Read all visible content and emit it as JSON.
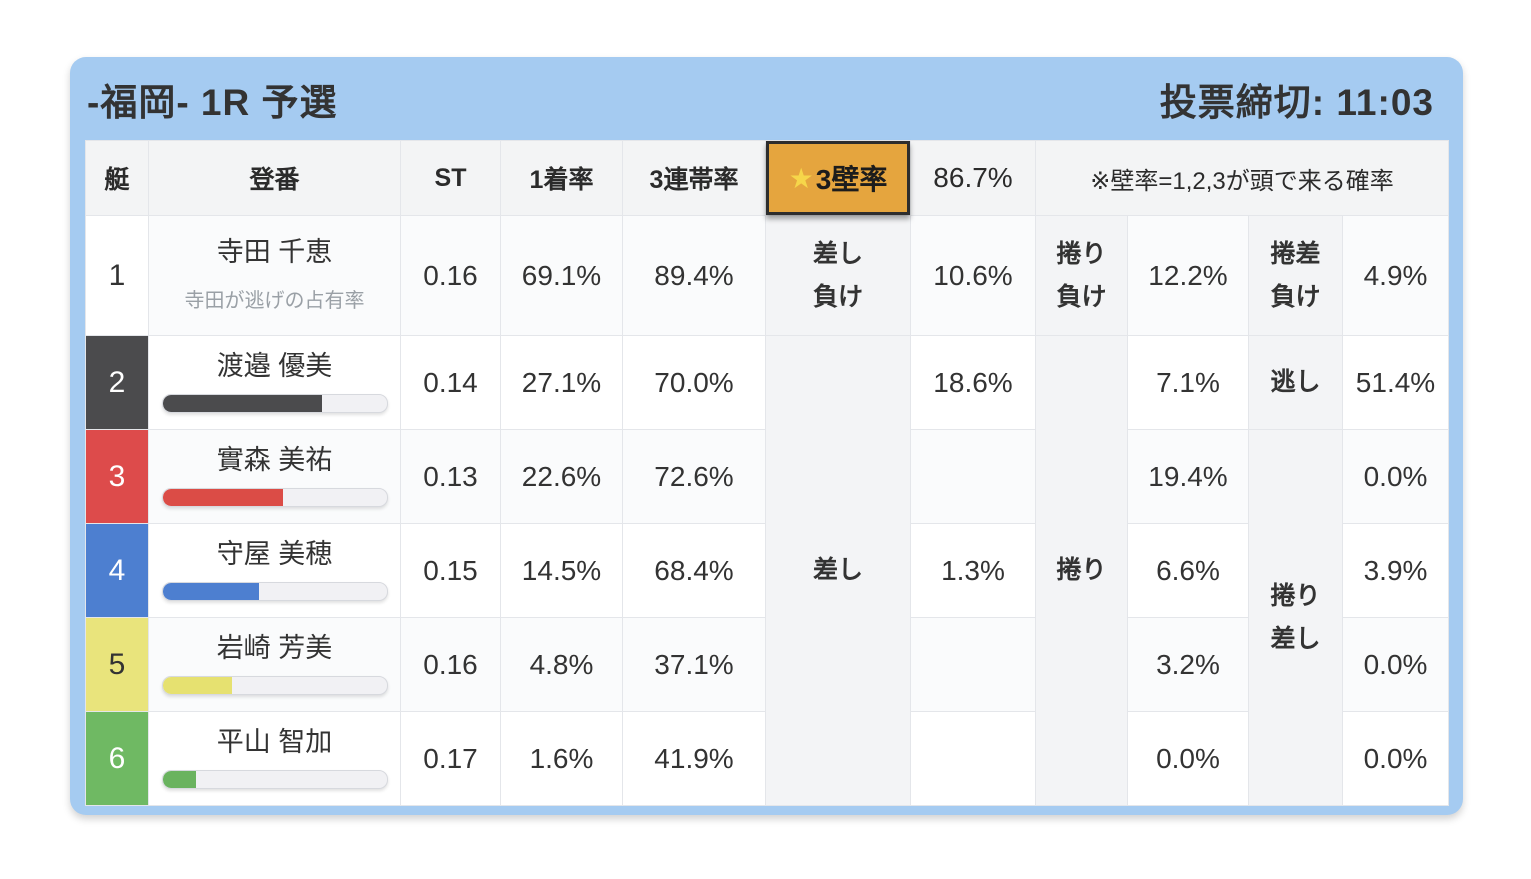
{
  "header": {
    "title": "-福岡- 1R 予選",
    "deadline": "投票締切: 11:03"
  },
  "columns": {
    "boat": "艇",
    "racer": "登番",
    "st": "ST",
    "win_rate": "1着率",
    "top3_rate": "3連帯率",
    "wall_star_icon": "★",
    "wall_label": "3壁率",
    "wall_value": "86.7%",
    "note": "※壁率=1,2,3が頭で来る確率"
  },
  "merged_labels": {
    "sashi": "差し",
    "makuri": "捲り",
    "makuri_sashi": "捲り\n差し",
    "nigashi": "逃し"
  },
  "rows": [
    {
      "boat": "1",
      "name": "寺田 千恵",
      "subtext": "寺田が逃げの占有率",
      "st": "0.16",
      "win": "69.1%",
      "top3": "89.4%",
      "label1": "差し\n負け",
      "val1": "10.6%",
      "label2": "捲り\n負け",
      "val2": "12.2%",
      "label3": "捲差\n負け",
      "val3": "4.9%",
      "boat_bg": "#ffffff",
      "boat_fg": "#333333"
    },
    {
      "boat": "2",
      "name": "渡邉 優美",
      "st": "0.14",
      "win": "27.1%",
      "top3": "70.0%",
      "val1": "18.6%",
      "val2": "7.1%",
      "val3": "51.4%",
      "boat_bg": "#4b4b4d",
      "boat_fg": "#ffffff",
      "bar": {
        "pct": 71,
        "color": "#4b4b4d"
      }
    },
    {
      "boat": "3",
      "name": "實森 美祐",
      "st": "0.13",
      "win": "22.6%",
      "top3": "72.6%",
      "val1": "",
      "val2": "19.4%",
      "val3": "0.0%",
      "boat_bg": "#dd4b4b",
      "boat_fg": "#ffffff",
      "bar": {
        "pct": 54,
        "color": "#db4c46"
      }
    },
    {
      "boat": "4",
      "name": "守屋 美穂",
      "st": "0.15",
      "win": "14.5%",
      "top3": "68.4%",
      "val1": "1.3%",
      "val2": "6.6%",
      "val3": "3.9%",
      "boat_bg": "#4d7fd0",
      "boat_fg": "#ffffff",
      "bar": {
        "pct": 43,
        "color": "#4d7fd0"
      }
    },
    {
      "boat": "5",
      "name": "岩崎 芳美",
      "st": "0.16",
      "win": "4.8%",
      "top3": "37.1%",
      "val1": "",
      "val2": "3.2%",
      "val3": "0.0%",
      "boat_bg": "#e9e47c",
      "boat_fg": "#333333",
      "bar": {
        "pct": 31,
        "color": "#e6e170"
      }
    },
    {
      "boat": "6",
      "name": "平山 智加",
      "st": "0.17",
      "win": "1.6%",
      "top3": "41.9%",
      "val1": "",
      "val2": "0.0%",
      "val3": "0.0%",
      "boat_bg": "#6fb963",
      "boat_fg": "#ffffff",
      "bar": {
        "pct": 15,
        "color": "#6ab35f"
      }
    }
  ],
  "theme": {
    "card_blue": "#a5cbf1",
    "highlight_orange": "#e5a53e",
    "star_yellow": "#f6d64a"
  }
}
